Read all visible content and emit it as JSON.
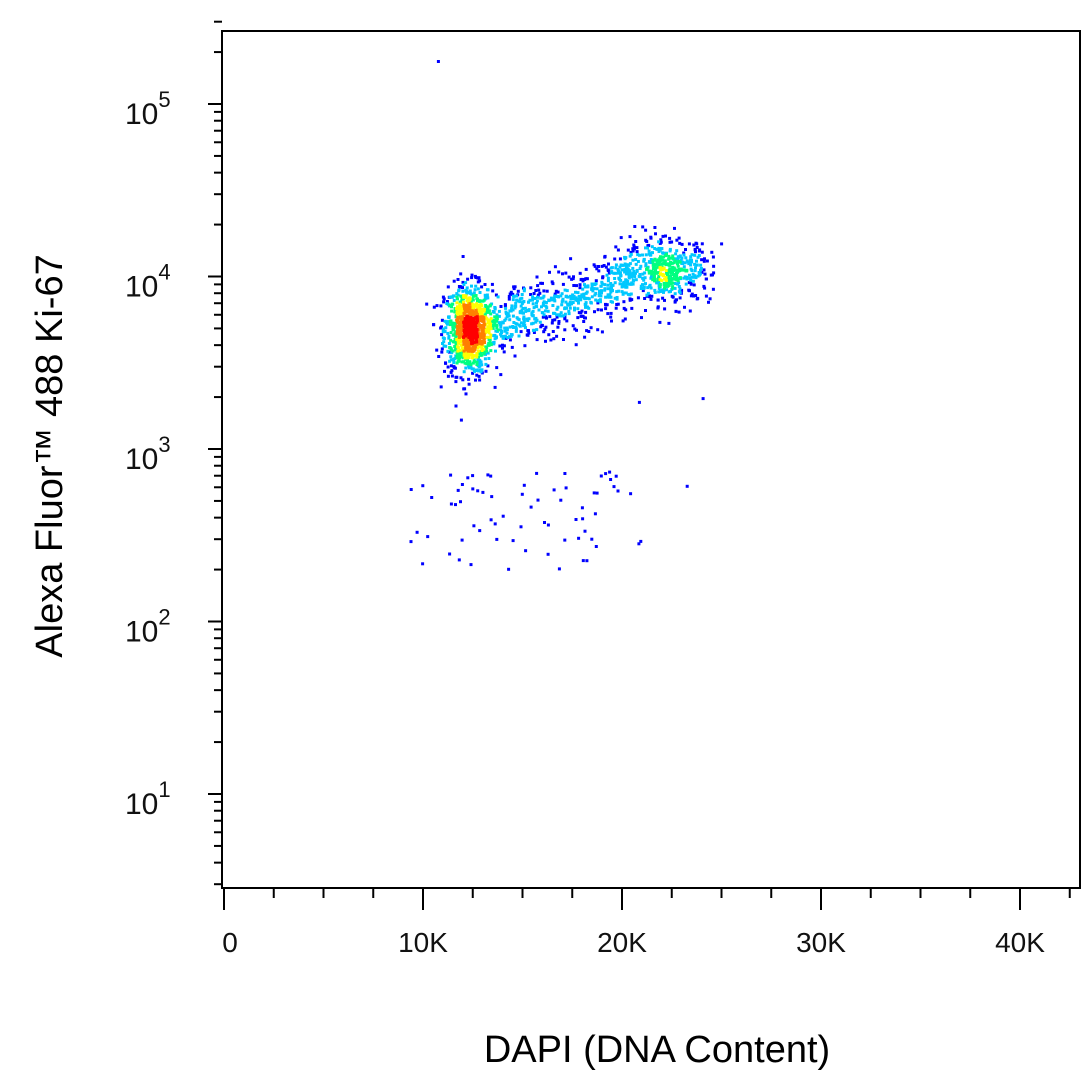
{
  "chart_data": {
    "type": "scatter",
    "title": "",
    "xlabel": "DAPI (DNA Content)",
    "ylabel": "Alexa Fluor™ 488 Ki-67",
    "x_scale": "linear",
    "y_scale": "log",
    "xlim": [
      0,
      43000
    ],
    "ylim": [
      3,
      300000
    ],
    "x_ticks": [
      {
        "value": 0,
        "label": "0"
      },
      {
        "value": 10000,
        "label": "10K"
      },
      {
        "value": 20000,
        "label": "20K"
      },
      {
        "value": 30000,
        "label": "30K"
      },
      {
        "value": 40000,
        "label": "40K"
      }
    ],
    "y_ticks": [
      {
        "value": 10,
        "base": "10",
        "exp": "1"
      },
      {
        "value": 100,
        "base": "10",
        "exp": "2"
      },
      {
        "value": 1000,
        "base": "10",
        "exp": "3"
      },
      {
        "value": 10000,
        "base": "10",
        "exp": "4"
      },
      {
        "value": 100000,
        "base": "10",
        "exp": "5"
      }
    ],
    "grid": false,
    "density_colormap": [
      "#0000ff",
      "#00c8ff",
      "#00ff80",
      "#ffff00",
      "#ff8000",
      "#ff0000"
    ],
    "populations": [
      {
        "name": "G1 Ki-67+",
        "x_center": 12200,
        "x_spread": 600,
        "y_center": 5000,
        "y_log_spread": 0.13,
        "count": 900
      },
      {
        "name": "S phase",
        "x_range": [
          12500,
          20500
        ],
        "y_range": [
          5000,
          9500
        ],
        "y_log_spread": 0.09,
        "count": 650
      },
      {
        "name": "G2/M",
        "x_center": 22200,
        "x_spread": 1100,
        "y_center": 11000,
        "y_log_spread": 0.09,
        "count": 500
      },
      {
        "name": "Ki-67 low",
        "x_range": [
          9300,
          21000
        ],
        "y_range": [
          200,
          750
        ],
        "count": 70
      }
    ],
    "outliers": [
      {
        "x": 10700,
        "y": 180000
      },
      {
        "x": 20800,
        "y": 1900
      },
      {
        "x": 24000,
        "y": 2000
      },
      {
        "x": 23200,
        "y": 620
      },
      {
        "x": 19300,
        "y": 750
      }
    ]
  }
}
